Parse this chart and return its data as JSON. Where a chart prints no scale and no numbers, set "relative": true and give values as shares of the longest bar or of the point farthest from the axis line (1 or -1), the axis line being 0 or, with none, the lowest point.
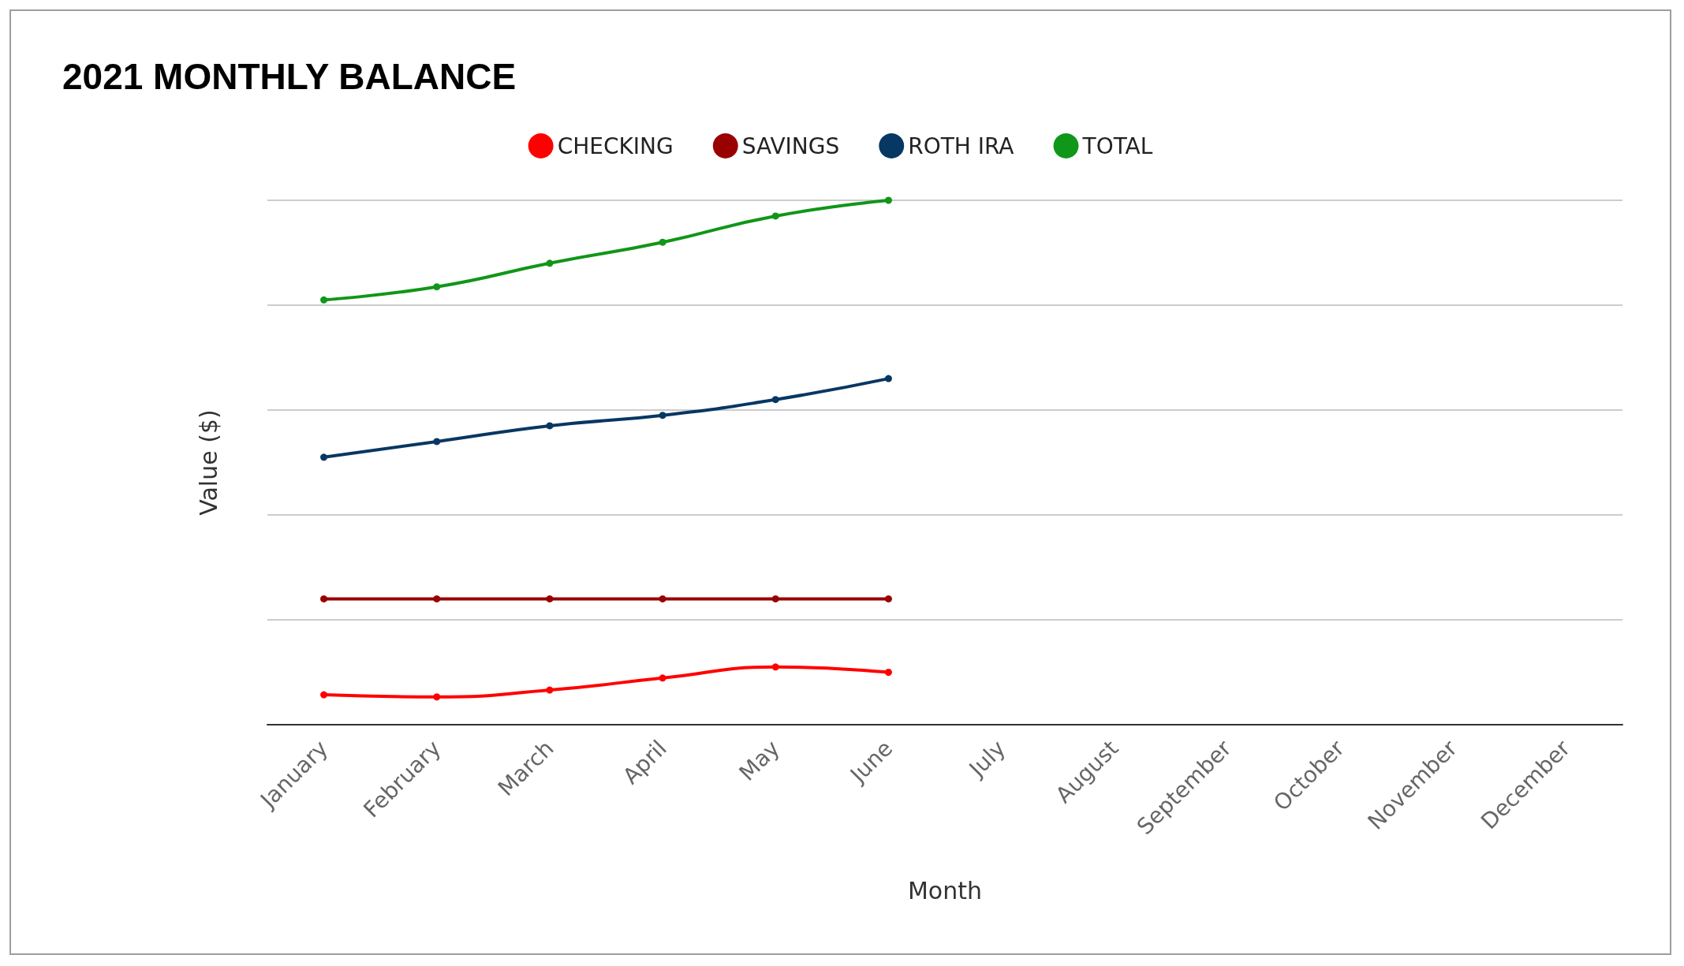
{
  "chart_data": {
    "type": "line",
    "title": "2021 MONTHLY BALANCE",
    "xlabel": "Month",
    "ylabel": "Value ($)",
    "relative": true,
    "grid": "y",
    "legend": "top",
    "marker": "circle",
    "line_style": "solid",
    "categories": [
      "January",
      "February",
      "March",
      "April",
      "May",
      "June",
      "July",
      "August",
      "September",
      "October",
      "November",
      "December"
    ],
    "series": [
      {
        "name": "CHECKING",
        "color": "#ff0000",
        "values": [
          0.057,
          0.053,
          0.066,
          0.089,
          0.11,
          0.1,
          null,
          null,
          null,
          null,
          null,
          null
        ]
      },
      {
        "name": "SAVINGS",
        "color": "#990000",
        "values": [
          0.24,
          0.24,
          0.24,
          0.24,
          0.24,
          0.24,
          null,
          null,
          null,
          null,
          null,
          null
        ]
      },
      {
        "name": "ROTH IRA",
        "color": "#073763",
        "values": [
          0.51,
          0.54,
          0.57,
          0.59,
          0.62,
          0.66,
          null,
          null,
          null,
          null,
          null,
          null
        ]
      },
      {
        "name": "TOTAL",
        "color": "#109618",
        "values": [
          0.81,
          0.835,
          0.88,
          0.92,
          0.97,
          1,
          null,
          null,
          null,
          null,
          null,
          null
        ]
      }
    ]
  }
}
